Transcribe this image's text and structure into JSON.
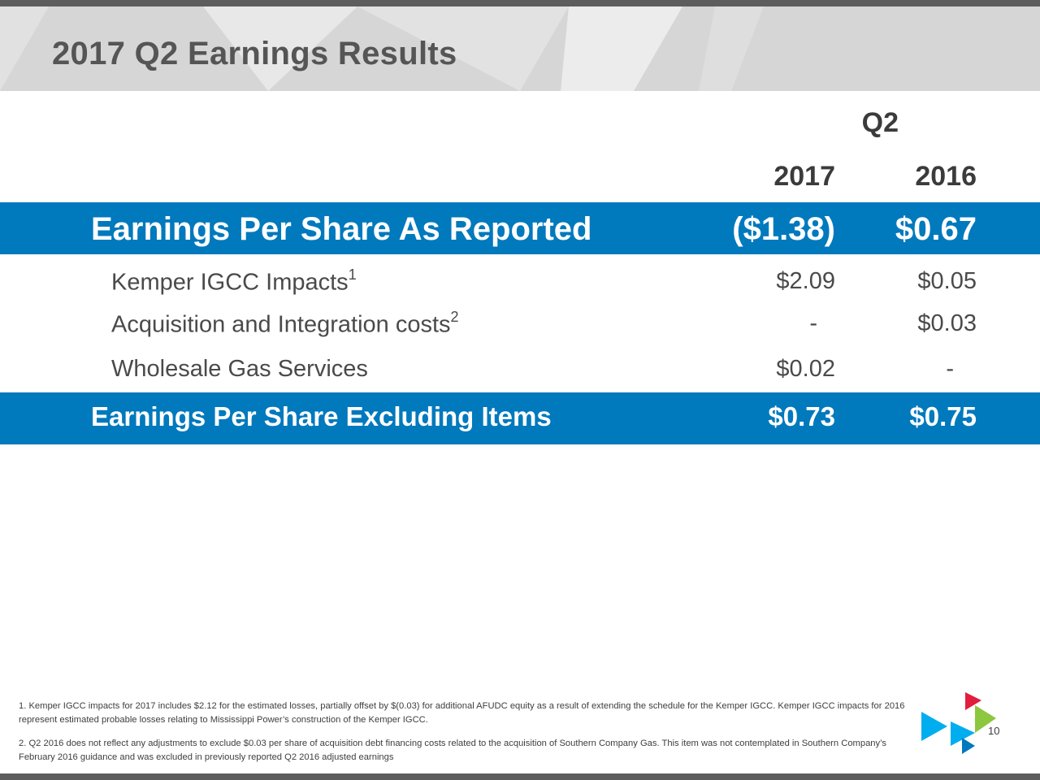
{
  "slide": {
    "title": "2017 Q2 Earnings Results",
    "page_number": "10"
  },
  "table": {
    "period_header": "Q2",
    "columns": [
      "2017",
      "2016"
    ],
    "rows": [
      {
        "label": "Earnings Per Share As Reported",
        "superscript": "",
        "v2017": "($1.38)",
        "v2016": "$0.67",
        "style": "highlight"
      },
      {
        "label": "Kemper IGCC Impacts",
        "superscript": "1",
        "v2017": "$2.09",
        "v2016": "$0.05",
        "style": "normal"
      },
      {
        "label": "Acquisition and Integration costs",
        "superscript": "2",
        "v2017": "-",
        "v2016": "$0.03",
        "style": "normal"
      },
      {
        "label": "Wholesale Gas Services",
        "superscript": "",
        "v2017": "$0.02",
        "v2016": "-",
        "style": "normal"
      },
      {
        "label": "Earnings Per Share Excluding Items",
        "superscript": "",
        "v2017": "$0.73",
        "v2016": "$0.75",
        "style": "highlight"
      }
    ]
  },
  "footnotes": [
    "1. Kemper IGCC impacts for 2017 includes $2.12 for the estimated losses, partially offset by $(0.03) for additional AFUDC equity as a result of extending the schedule for the Kemper IGCC. Kemper IGCC impacts for 2016 represent estimated probable losses relating to Mississippi Power’s construction of the Kemper IGCC.",
    "2. Q2 2016 does not reflect any adjustments to exclude $0.03 per share of acquisition debt financing costs related to the acquisition of Southern Company Gas. This item was not contemplated in Southern Company’s February 2016 guidance and was excluded in previously reported Q2 2016 adjusted earnings"
  ],
  "colors": {
    "highlight_band": "#0079bd",
    "header_band": "#d6d6d6",
    "frame_bar": "#5d5d5d",
    "logo_red": "#e31d3c",
    "logo_green": "#8dc63f",
    "logo_cyan": "#00aeef",
    "logo_blue": "#0079bd"
  },
  "icons": {
    "logo": "triangles-logo-icon"
  }
}
